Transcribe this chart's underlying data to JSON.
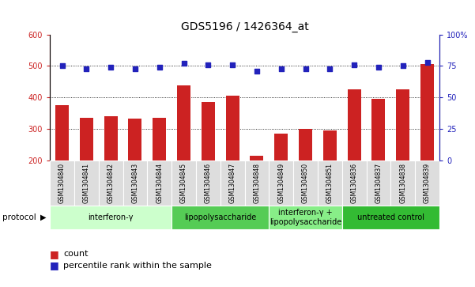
{
  "title": "GDS5196 / 1426364_at",
  "samples": [
    "GSM1304840",
    "GSM1304841",
    "GSM1304842",
    "GSM1304843",
    "GSM1304844",
    "GSM1304845",
    "GSM1304846",
    "GSM1304847",
    "GSM1304848",
    "GSM1304849",
    "GSM1304850",
    "GSM1304851",
    "GSM1304836",
    "GSM1304837",
    "GSM1304838",
    "GSM1304839"
  ],
  "counts": [
    375,
    337,
    340,
    334,
    335,
    438,
    385,
    405,
    215,
    287,
    302,
    295,
    425,
    395,
    425,
    505
  ],
  "percentiles": [
    75,
    73,
    74,
    73,
    74,
    77,
    76,
    76,
    71,
    73,
    73,
    73,
    76,
    74,
    75,
    78
  ],
  "groups": [
    {
      "label": "interferon-γ",
      "start": 0,
      "end": 5,
      "color": "#ccffcc"
    },
    {
      "label": "lipopolysaccharide",
      "start": 5,
      "end": 9,
      "color": "#55cc55"
    },
    {
      "label": "interferon-γ +\nlipopolysaccharide",
      "start": 9,
      "end": 12,
      "color": "#88ee88"
    },
    {
      "label": "untreated control",
      "start": 12,
      "end": 16,
      "color": "#33bb33"
    }
  ],
  "ylim_left": [
    200,
    600
  ],
  "ylim_right": [
    0,
    100
  ],
  "yticks_left": [
    200,
    300,
    400,
    500,
    600
  ],
  "yticks_right": [
    0,
    25,
    50,
    75,
    100
  ],
  "bar_color": "#cc2222",
  "dot_color": "#2222bb",
  "bar_width": 0.55,
  "grid_color": "#000000",
  "ylabel_left_color": "#cc2222",
  "ylabel_right_color": "#2222bb",
  "title_fontsize": 10,
  "tick_fontsize": 7,
  "sample_fontsize": 5.5,
  "group_fontsize": 7,
  "legend_fontsize": 8,
  "protocol_label": "protocol",
  "legend_items": [
    "count",
    "percentile rank within the sample"
  ]
}
